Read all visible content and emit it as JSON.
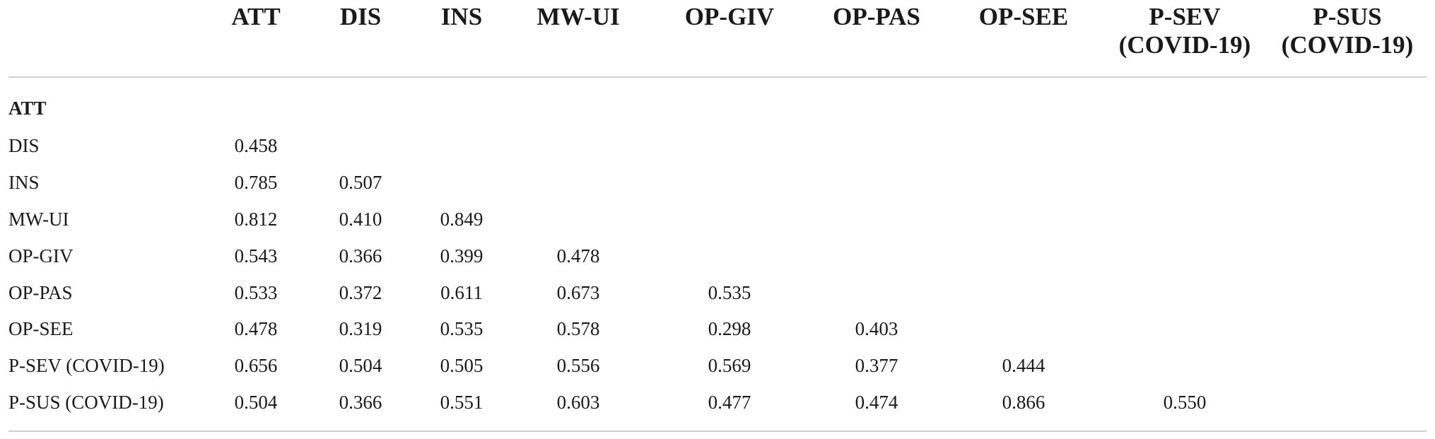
{
  "table": {
    "columns": [
      [
        "ATT"
      ],
      [
        "DIS"
      ],
      [
        "INS"
      ],
      [
        "MW-UI"
      ],
      [
        "OP-GIV"
      ],
      [
        "OP-PAS"
      ],
      [
        "OP-SEE"
      ],
      [
        "P-SEV",
        "(COVID-19)"
      ],
      [
        "P-SUS",
        "(COVID-19)"
      ]
    ],
    "rows": [
      {
        "label": "ATT",
        "values": []
      },
      {
        "label": "DIS",
        "values": [
          "0.458"
        ]
      },
      {
        "label": "INS",
        "values": [
          "0.785",
          "0.507"
        ]
      },
      {
        "label": "MW-UI",
        "values": [
          "0.812",
          "0.410",
          "0.849"
        ]
      },
      {
        "label": "OP-GIV",
        "values": [
          "0.543",
          "0.366",
          "0.399",
          "0.478"
        ]
      },
      {
        "label": "OP-PAS",
        "values": [
          "0.533",
          "0.372",
          "0.611",
          "0.673",
          "0.535"
        ]
      },
      {
        "label": "OP-SEE",
        "values": [
          "0.478",
          "0.319",
          "0.535",
          "0.578",
          "0.298",
          "0.403"
        ]
      },
      {
        "label": "P-SEV (COVID-19)",
        "values": [
          "0.656",
          "0.504",
          "0.505",
          "0.556",
          "0.569",
          "0.377",
          "0.444"
        ]
      },
      {
        "label": "P-SUS (COVID-19)",
        "values": [
          "0.504",
          "0.366",
          "0.551",
          "0.603",
          "0.477",
          "0.474",
          "0.866",
          "0.550"
        ]
      }
    ]
  }
}
